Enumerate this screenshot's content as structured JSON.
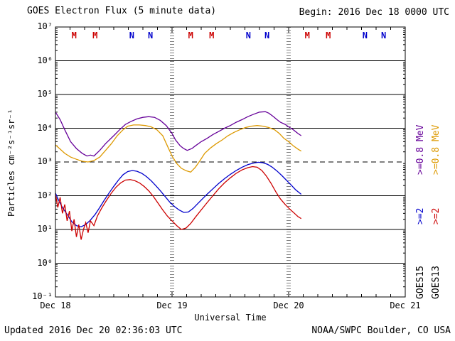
{
  "header": {
    "title": "GOES Electron Flux (5 minute data)",
    "begin_label": "Begin: 2016 Dec 18 0000 UTC"
  },
  "footer": {
    "updated": "Updated 2016 Dec 20 02:36:03 UTC",
    "agency": "NOAA/SWPC Boulder, CO USA"
  },
  "chart_data": {
    "type": "line",
    "title": "GOES Electron Flux (5 minute data)",
    "xlabel": "Universal Time",
    "ylabel": "Particles cm⁻²s⁻¹sr⁻¹",
    "y_scale": "log",
    "x_range_days": [
      0,
      3
    ],
    "x_ticks": [
      {
        "label": "Dec 18",
        "day": 0
      },
      {
        "label": "Dec 19",
        "day": 1
      },
      {
        "label": "Dec 20",
        "day": 2
      },
      {
        "label": "Dec 21",
        "day": 3
      }
    ],
    "y_exponents": [
      7,
      6,
      5,
      4,
      3,
      2,
      1,
      0,
      -1
    ],
    "y_tick_labels": [
      "10⁷",
      "10⁶",
      "10⁵",
      "10⁴",
      "10³",
      "10²",
      "10¹",
      "10⁰",
      "10⁻¹"
    ],
    "grid": "horizontal-decades",
    "threshold_line": {
      "value": 1000,
      "style": "dashed"
    },
    "day_boundary_lines": {
      "days": [
        1,
        2
      ],
      "style": "dotted"
    },
    "legend": {
      "columns": [
        {
          "satellite": "GOES15",
          "e2_label": ">=2",
          "e2_color": "#0000cc",
          "e08_label": ">=0.8 MeV",
          "e08_color": "#660099"
        },
        {
          "satellite": "GOES13",
          "e2_label": ">=2",
          "e2_color": "#cc0000",
          "e08_label": ">=0.8 MeV",
          "e08_color": "#dd9900"
        }
      ]
    },
    "markers": [
      {
        "label": "M",
        "color": "#cc0000",
        "t": 0.16
      },
      {
        "label": "M",
        "color": "#cc0000",
        "t": 0.34
      },
      {
        "label": "N",
        "color": "#0000cc",
        "t": 0.655
      },
      {
        "label": "N",
        "color": "#0000cc",
        "t": 0.815
      },
      {
        "label": "M",
        "color": "#cc0000",
        "t": 1.16
      },
      {
        "label": "M",
        "color": "#cc0000",
        "t": 1.34
      },
      {
        "label": "N",
        "color": "#0000cc",
        "t": 1.655
      },
      {
        "label": "N",
        "color": "#0000cc",
        "t": 1.815
      },
      {
        "label": "M",
        "color": "#cc0000",
        "t": 2.16
      },
      {
        "label": "M",
        "color": "#cc0000",
        "t": 2.34
      },
      {
        "label": "N",
        "color": "#0000cc",
        "t": 2.655
      },
      {
        "label": "N",
        "color": "#0000cc",
        "t": 2.815
      }
    ],
    "series": [
      {
        "name": "GOES13 >=0.8 MeV",
        "color": "#dd9900",
        "points": [
          [
            0,
            3200
          ],
          [
            0.04,
            2400
          ],
          [
            0.08,
            1800
          ],
          [
            0.13,
            1400
          ],
          [
            0.18,
            1200
          ],
          [
            0.23,
            1050
          ],
          [
            0.28,
            1000
          ],
          [
            0.33,
            1100
          ],
          [
            0.38,
            1400
          ],
          [
            0.43,
            2200
          ],
          [
            0.48,
            3500
          ],
          [
            0.53,
            6000
          ],
          [
            0.58,
            9000
          ],
          [
            0.62,
            11500
          ],
          [
            0.67,
            12500
          ],
          [
            0.72,
            12500
          ],
          [
            0.77,
            12000
          ],
          [
            0.82,
            11000
          ],
          [
            0.87,
            9000
          ],
          [
            0.92,
            6000
          ],
          [
            0.96,
            3000
          ],
          [
            1.0,
            1500
          ],
          [
            1.04,
            900
          ],
          [
            1.08,
            650
          ],
          [
            1.12,
            550
          ],
          [
            1.16,
            500
          ],
          [
            1.2,
            700
          ],
          [
            1.24,
            1100
          ],
          [
            1.28,
            1800
          ],
          [
            1.33,
            2600
          ],
          [
            1.38,
            3500
          ],
          [
            1.43,
            4500
          ],
          [
            1.48,
            6000
          ],
          [
            1.53,
            7500
          ],
          [
            1.58,
            9000
          ],
          [
            1.63,
            10500
          ],
          [
            1.68,
            11500
          ],
          [
            1.73,
            12000
          ],
          [
            1.78,
            11500
          ],
          [
            1.83,
            10500
          ],
          [
            1.88,
            9000
          ],
          [
            1.92,
            7000
          ],
          [
            1.96,
            5000
          ],
          [
            2.0,
            4000
          ],
          [
            2.04,
            3000
          ],
          [
            2.08,
            2400
          ],
          [
            2.108,
            2100
          ]
        ]
      },
      {
        "name": "GOES15 >=0.8 MeV",
        "color": "#660099",
        "points": [
          [
            0,
            30000
          ],
          [
            0.04,
            18000
          ],
          [
            0.08,
            9000
          ],
          [
            0.13,
            4000
          ],
          [
            0.18,
            2500
          ],
          [
            0.23,
            1800
          ],
          [
            0.27,
            1500
          ],
          [
            0.3,
            1600
          ],
          [
            0.33,
            1500
          ],
          [
            0.38,
            2200
          ],
          [
            0.43,
            3500
          ],
          [
            0.5,
            6000
          ],
          [
            0.55,
            9000
          ],
          [
            0.6,
            13000
          ],
          [
            0.65,
            16000
          ],
          [
            0.7,
            19000
          ],
          [
            0.75,
            21000
          ],
          [
            0.8,
            22000
          ],
          [
            0.85,
            21000
          ],
          [
            0.9,
            17000
          ],
          [
            0.95,
            12000
          ],
          [
            1.0,
            7000
          ],
          [
            1.03,
            4500
          ],
          [
            1.07,
            3000
          ],
          [
            1.1,
            2500
          ],
          [
            1.13,
            2200
          ],
          [
            1.17,
            2500
          ],
          [
            1.2,
            3000
          ],
          [
            1.25,
            4000
          ],
          [
            1.3,
            5000
          ],
          [
            1.35,
            6500
          ],
          [
            1.4,
            8000
          ],
          [
            1.45,
            10000
          ],
          [
            1.5,
            12000
          ],
          [
            1.55,
            15000
          ],
          [
            1.6,
            18000
          ],
          [
            1.65,
            22000
          ],
          [
            1.7,
            26000
          ],
          [
            1.75,
            30000
          ],
          [
            1.8,
            31000
          ],
          [
            1.83,
            28000
          ],
          [
            1.87,
            22000
          ],
          [
            1.9,
            18000
          ],
          [
            1.93,
            15000
          ],
          [
            1.97,
            13000
          ],
          [
            2.0,
            11000
          ],
          [
            2.04,
            9000
          ],
          [
            2.08,
            7000
          ],
          [
            2.108,
            6000
          ]
        ]
      },
      {
        "name": "GOES15 >=2 MeV",
        "color": "#0000cc",
        "points": [
          [
            0,
            120
          ],
          [
            0.03,
            70
          ],
          [
            0.06,
            45
          ],
          [
            0.1,
            28
          ],
          [
            0.14,
            17
          ],
          [
            0.18,
            13
          ],
          [
            0.22,
            12
          ],
          [
            0.26,
            14
          ],
          [
            0.3,
            19
          ],
          [
            0.34,
            28
          ],
          [
            0.38,
            45
          ],
          [
            0.42,
            75
          ],
          [
            0.46,
            120
          ],
          [
            0.5,
            190
          ],
          [
            0.54,
            290
          ],
          [
            0.58,
            420
          ],
          [
            0.62,
            520
          ],
          [
            0.66,
            560
          ],
          [
            0.7,
            530
          ],
          [
            0.74,
            460
          ],
          [
            0.78,
            370
          ],
          [
            0.82,
            280
          ],
          [
            0.86,
            200
          ],
          [
            0.9,
            140
          ],
          [
            0.94,
            95
          ],
          [
            0.98,
            65
          ],
          [
            1.02,
            48
          ],
          [
            1.06,
            38
          ],
          [
            1.1,
            32
          ],
          [
            1.14,
            33
          ],
          [
            1.18,
            42
          ],
          [
            1.22,
            58
          ],
          [
            1.26,
            80
          ],
          [
            1.3,
            110
          ],
          [
            1.35,
            160
          ],
          [
            1.4,
            230
          ],
          [
            1.45,
            320
          ],
          [
            1.5,
            430
          ],
          [
            1.55,
            560
          ],
          [
            1.6,
            700
          ],
          [
            1.65,
            830
          ],
          [
            1.7,
            930
          ],
          [
            1.74,
            980
          ],
          [
            1.78,
            950
          ],
          [
            1.82,
            850
          ],
          [
            1.86,
            700
          ],
          [
            1.9,
            540
          ],
          [
            1.94,
            400
          ],
          [
            1.98,
            290
          ],
          [
            2.02,
            210
          ],
          [
            2.06,
            150
          ],
          [
            2.108,
            110
          ]
        ]
      },
      {
        "name": "GOES13 >=2 MeV",
        "color": "#cc0000",
        "points": [
          [
            0,
            110
          ],
          [
            0.02,
            45
          ],
          [
            0.04,
            90
          ],
          [
            0.06,
            30
          ],
          [
            0.08,
            55
          ],
          [
            0.1,
            18
          ],
          [
            0.12,
            35
          ],
          [
            0.14,
            9
          ],
          [
            0.16,
            20
          ],
          [
            0.18,
            6
          ],
          [
            0.2,
            14
          ],
          [
            0.22,
            5
          ],
          [
            0.24,
            10
          ],
          [
            0.26,
            16
          ],
          [
            0.28,
            8
          ],
          [
            0.3,
            18
          ],
          [
            0.33,
            13
          ],
          [
            0.36,
            25
          ],
          [
            0.4,
            45
          ],
          [
            0.44,
            75
          ],
          [
            0.48,
            120
          ],
          [
            0.52,
            180
          ],
          [
            0.56,
            240
          ],
          [
            0.6,
            290
          ],
          [
            0.64,
            300
          ],
          [
            0.68,
            280
          ],
          [
            0.72,
            240
          ],
          [
            0.76,
            190
          ],
          [
            0.8,
            140
          ],
          [
            0.84,
            95
          ],
          [
            0.88,
            60
          ],
          [
            0.92,
            38
          ],
          [
            0.96,
            25
          ],
          [
            1.0,
            18
          ],
          [
            1.04,
            13
          ],
          [
            1.08,
            10
          ],
          [
            1.12,
            11
          ],
          [
            1.16,
            15
          ],
          [
            1.2,
            23
          ],
          [
            1.25,
            38
          ],
          [
            1.3,
            62
          ],
          [
            1.35,
            100
          ],
          [
            1.4,
            160
          ],
          [
            1.45,
            240
          ],
          [
            1.5,
            340
          ],
          [
            1.55,
            460
          ],
          [
            1.6,
            580
          ],
          [
            1.65,
            680
          ],
          [
            1.69,
            730
          ],
          [
            1.73,
            700
          ],
          [
            1.77,
            560
          ],
          [
            1.81,
            380
          ],
          [
            1.85,
            230
          ],
          [
            1.89,
            130
          ],
          [
            1.93,
            80
          ],
          [
            1.97,
            55
          ],
          [
            2.01,
            40
          ],
          [
            2.05,
            30
          ],
          [
            2.08,
            24
          ],
          [
            2.108,
            21
          ]
        ]
      }
    ]
  }
}
